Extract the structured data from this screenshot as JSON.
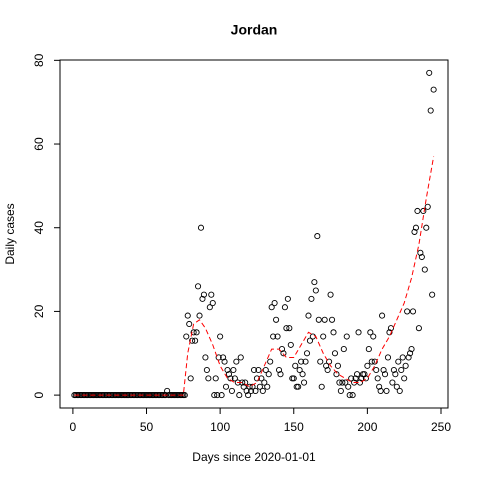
{
  "chart_data": {
    "type": "scatter",
    "title": "Jordan",
    "x_label": "Days since 2020-01-01",
    "y_label": "Daily cases",
    "x": [
      1,
      2,
      3,
      4,
      5,
      6,
      7,
      8,
      9,
      10,
      11,
      12,
      13,
      14,
      15,
      16,
      17,
      18,
      19,
      20,
      21,
      22,
      23,
      24,
      25,
      26,
      27,
      28,
      29,
      30,
      31,
      32,
      33,
      34,
      35,
      36,
      37,
      38,
      39,
      40,
      41,
      42,
      43,
      44,
      45,
      46,
      47,
      48,
      49,
      50,
      51,
      52,
      53,
      54,
      55,
      56,
      57,
      58,
      59,
      60,
      61,
      62,
      63,
      64,
      65,
      66,
      67,
      68,
      69,
      70,
      71,
      72,
      73,
      74,
      75,
      76,
      77,
      78,
      79,
      80,
      81,
      82,
      83,
      84,
      85,
      86,
      87,
      88,
      89,
      90,
      91,
      92,
      93,
      94,
      95,
      96,
      97,
      98,
      99,
      100,
      101,
      102,
      103,
      104,
      105,
      106,
      107,
      108,
      109,
      110,
      111,
      112,
      113,
      114,
      115,
      116,
      117,
      118,
      119,
      120,
      121,
      122,
      123,
      124,
      125,
      126,
      127,
      128,
      129,
      130,
      131,
      132,
      133,
      134,
      135,
      136,
      137,
      138,
      139,
      140,
      141,
      142,
      143,
      144,
      145,
      146,
      147,
      148,
      149,
      150,
      151,
      152,
      153,
      154,
      155,
      156,
      157,
      158,
      159,
      160,
      161,
      162,
      163,
      164,
      165,
      166,
      167,
      168,
      169,
      170,
      171,
      172,
      173,
      174,
      175,
      176,
      177,
      178,
      179,
      180,
      181,
      182,
      183,
      184,
      185,
      186,
      187,
      188,
      189,
      190,
      191,
      192,
      193,
      194,
      195,
      196,
      197,
      198,
      199,
      200,
      201,
      202,
      203,
      204,
      205,
      206,
      207,
      208,
      209,
      210,
      211,
      212,
      213,
      214,
      215,
      216,
      217,
      218,
      219,
      220,
      221,
      222,
      223,
      224,
      225,
      226,
      227,
      228,
      229,
      230,
      231,
      232,
      233,
      234,
      235,
      236,
      237,
      238,
      239,
      240,
      241,
      242,
      243,
      244,
      245
    ],
    "values": [
      0,
      0,
      0,
      0,
      0,
      0,
      0,
      0,
      0,
      0,
      0,
      0,
      0,
      0,
      0,
      0,
      0,
      0,
      0,
      0,
      0,
      0,
      0,
      0,
      0,
      0,
      0,
      0,
      0,
      0,
      0,
      0,
      0,
      0,
      0,
      0,
      0,
      0,
      0,
      0,
      0,
      0,
      0,
      0,
      0,
      0,
      0,
      0,
      0,
      0,
      0,
      0,
      0,
      0,
      0,
      0,
      0,
      0,
      0,
      0,
      0,
      0,
      0,
      1,
      0,
      0,
      0,
      0,
      0,
      0,
      0,
      0,
      0,
      0,
      0,
      0,
      14,
      19,
      17,
      4,
      13,
      15,
      13,
      15,
      26,
      19,
      40,
      23,
      24,
      9,
      6,
      4,
      21,
      24,
      22,
      0,
      4,
      0,
      9,
      14,
      0,
      9,
      8,
      2,
      6,
      5,
      4,
      1,
      6,
      4,
      8,
      3,
      0,
      9,
      3,
      2,
      3,
      1,
      0,
      2,
      1,
      2,
      6,
      1,
      4,
      6,
      2,
      4,
      1,
      3,
      6,
      2,
      5,
      8,
      21,
      14,
      22,
      18,
      14,
      6,
      5,
      11,
      10,
      21,
      16,
      23,
      16,
      12,
      4,
      4,
      7,
      2,
      2,
      6,
      8,
      5,
      3,
      8,
      10,
      19,
      13,
      23,
      14,
      27,
      25,
      38,
      18,
      8,
      2,
      14,
      18,
      7,
      6,
      8,
      24,
      18,
      15,
      10,
      5,
      7,
      3,
      1,
      3,
      11,
      3,
      14,
      2,
      0,
      4,
      0,
      3,
      4,
      5,
      15,
      3,
      4,
      5,
      5,
      4,
      7,
      11,
      15,
      8,
      14,
      8,
      6,
      4,
      2,
      1,
      19,
      6,
      5,
      1,
      9,
      15,
      16,
      3,
      6,
      5,
      2,
      8,
      1,
      6,
      9,
      4,
      7,
      20,
      9,
      10,
      11,
      20,
      39,
      40,
      44,
      16,
      34,
      33,
      44,
      30,
      40,
      45,
      77,
      68,
      24,
      73
    ],
    "color": "#000000",
    "smooth": {
      "color": "#ff0000",
      "x": [
        1,
        75,
        78,
        82,
        86,
        90,
        95,
        100,
        105,
        110,
        115,
        120,
        125,
        130,
        135,
        140,
        145,
        150,
        155,
        160,
        165,
        170,
        175,
        180,
        185,
        190,
        195,
        200,
        205,
        210,
        215,
        220,
        225,
        230,
        235,
        240,
        245
      ],
      "values": [
        0,
        0,
        10,
        17,
        18,
        16,
        12,
        7,
        4,
        3,
        3,
        2,
        3,
        7,
        11,
        11,
        9,
        9,
        12,
        15,
        14,
        10,
        7,
        5,
        4,
        3,
        3,
        4,
        7,
        11,
        14,
        18,
        22,
        28,
        36,
        47,
        57
      ]
    },
    "xlim": [
      -8.76,
      254.76
    ],
    "xticks": [
      0,
      50,
      100,
      150,
      200,
      250
    ],
    "ylim": [
      -3.08,
      80.08
    ],
    "yticks": [
      0,
      20,
      40,
      60,
      80
    ]
  }
}
